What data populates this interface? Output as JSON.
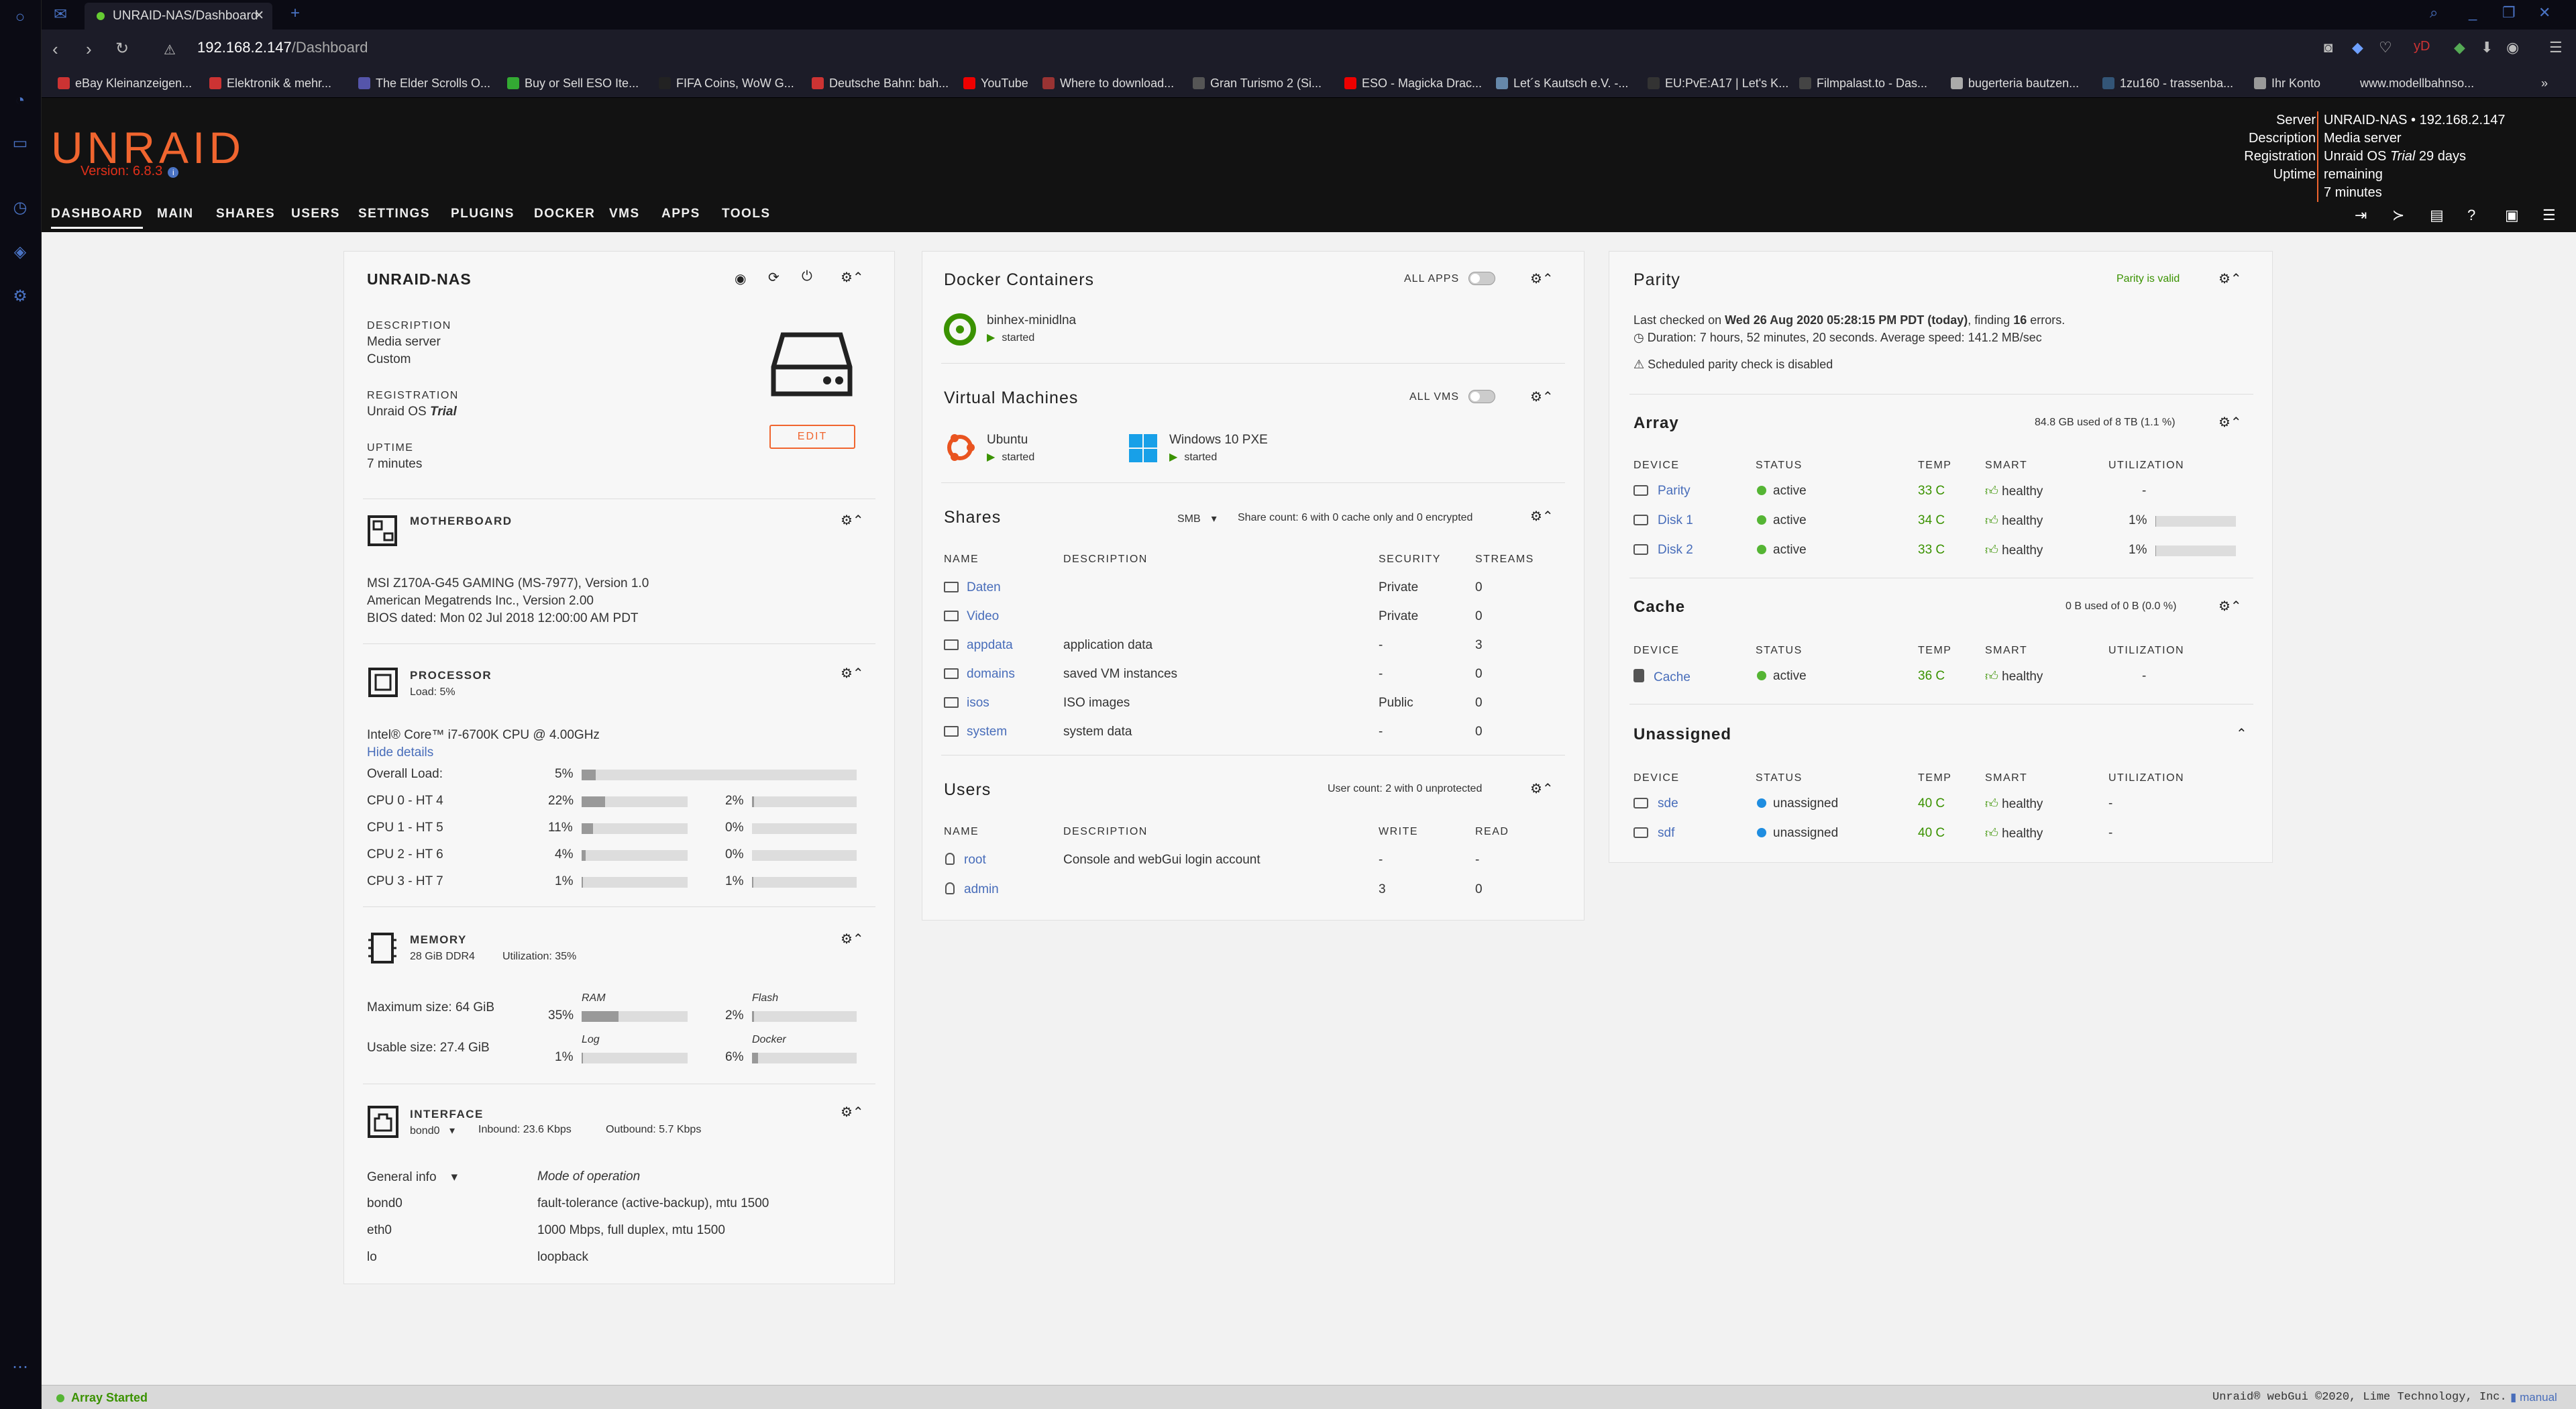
{
  "browser": {
    "tab_title": "UNRAID-NAS/Dashboard",
    "url_host": "192.168.2.147",
    "url_path": "/Dashboard",
    "bookmarks": [
      "eBay Kleinanzeigen...",
      "Elektronik & mehr...",
      "The Elder Scrolls O...",
      "Buy or Sell ESO Ite...",
      "FIFA Coins, WoW G...",
      "Deutsche Bahn: bah...",
      "YouTube",
      "Where to download...",
      "Gran Turismo 2 (Si...",
      "ESO - Magicka Drac...",
      "Let´s Kautsch e.V. -...",
      "EU:PvE:A17 | Let's K...",
      "Filmpalast.to - Das...",
      "bugerteria bautzen...",
      "1zu160 - trassenba...",
      "Ihr Konto",
      "www.modellbahnso..."
    ]
  },
  "header": {
    "logo": "UNRAID",
    "version": "Version: 6.8.3",
    "server_labels": [
      "Server",
      "Description",
      "Registration",
      "Uptime"
    ],
    "server": "UNRAID-NAS • 192.168.2.147",
    "description": "Media server",
    "registration_pre": "Unraid OS ",
    "registration_trial": "Trial",
    "registration_post": " 29 days remaining",
    "uptime": "7 minutes",
    "menu": [
      "DASHBOARD",
      "MAIN",
      "SHARES",
      "USERS",
      "SETTINGS",
      "PLUGINS",
      "DOCKER",
      "VMS",
      "APPS",
      "TOOLS"
    ]
  },
  "server_panel": {
    "name": "UNRAID-NAS",
    "desc_label": "DESCRIPTION",
    "desc1": "Media server",
    "desc2": "Custom",
    "reg_label": "REGISTRATION",
    "reg_pre": "Unraid OS ",
    "reg_trial": "Trial",
    "uptime_label": "UPTIME",
    "uptime": "7 minutes",
    "edit": "EDIT"
  },
  "motherboard": {
    "title": "MOTHERBOARD",
    "lines": [
      "MSI Z170A-G45 GAMING (MS-7977), Version 1.0",
      "American Megatrends Inc., Version 2.00",
      "BIOS dated: Mon 02 Jul 2018 12:00:00 AM PDT"
    ]
  },
  "processor": {
    "title": "PROCESSOR",
    "load": "Load: 5%",
    "model": "Intel® Core™ i7-6700K CPU @ 4.00GHz",
    "hide": "Hide details",
    "overall_label": "Overall Load:",
    "overall": "5%",
    "overall_pct": 5,
    "cpus": [
      {
        "label": "CPU 0 - HT 4",
        "a": "22%",
        "a_pct": 22,
        "b": "2%",
        "b_pct": 2
      },
      {
        "label": "CPU 1 - HT 5",
        "a": "11%",
        "a_pct": 11,
        "b": "0%",
        "b_pct": 0
      },
      {
        "label": "CPU 2 - HT 6",
        "a": "4%",
        "a_pct": 4,
        "b": "0%",
        "b_pct": 0
      },
      {
        "label": "CPU 3 - HT 7",
        "a": "1%",
        "a_pct": 1,
        "b": "1%",
        "b_pct": 1
      }
    ]
  },
  "memory": {
    "title": "MEMORY",
    "sub": "28 GiB DDR4",
    "util": "Utilization: 35%",
    "max": "Maximum size: 64 GiB",
    "usable": "Usable size: 27.4 GiB",
    "ram_label": "RAM",
    "ram": "35%",
    "ram_pct": 35,
    "flash_label": "Flash",
    "flash": "2%",
    "flash_pct": 2,
    "log_label": "Log",
    "log": "1%",
    "log_pct": 1,
    "docker_label": "Docker",
    "docker": "6%",
    "docker_pct": 6
  },
  "interface": {
    "title": "INTERFACE",
    "iface": "bond0",
    "inbound": "Inbound: 23.6 Kbps",
    "outbound": "Outbound: 5.7 Kbps",
    "general": "General info",
    "mode": "Mode of operation",
    "rows": [
      [
        "bond0",
        "fault-tolerance (active-backup), mtu 1500"
      ],
      [
        "eth0",
        "1000 Mbps, full duplex, mtu 1500"
      ],
      [
        "lo",
        "loopback"
      ]
    ]
  },
  "docker": {
    "title": "Docker Containers",
    "all": "ALL APPS",
    "name": "binhex-minidlna",
    "state": "started"
  },
  "vms": {
    "title": "Virtual Machines",
    "all": "ALL VMS",
    "items": [
      {
        "name": "Ubuntu",
        "state": "started"
      },
      {
        "name": "Windows 10 PXE",
        "state": "started"
      }
    ]
  },
  "shares": {
    "title": "Shares",
    "proto": "SMB",
    "count": "Share count: 6 with 0 cache only and 0 encrypted",
    "headers": [
      "NAME",
      "DESCRIPTION",
      "SECURITY",
      "STREAMS"
    ],
    "rows": [
      [
        "Daten",
        "",
        "Private",
        "0"
      ],
      [
        "Video",
        "",
        "Private",
        "0"
      ],
      [
        "appdata",
        "application data",
        "-",
        "3"
      ],
      [
        "domains",
        "saved VM instances",
        "-",
        "0"
      ],
      [
        "isos",
        "ISO images",
        "Public",
        "0"
      ],
      [
        "system",
        "system data",
        "-",
        "0"
      ]
    ]
  },
  "users": {
    "title": "Users",
    "count": "User count: 2 with 0 unprotected",
    "headers": [
      "NAME",
      "DESCRIPTION",
      "WRITE",
      "READ"
    ],
    "rows": [
      [
        "root",
        "Console and webGui login account",
        "-",
        "-"
      ],
      [
        "admin",
        "",
        "3",
        "0"
      ]
    ]
  },
  "parity": {
    "title": "Parity",
    "status": "Parity is valid",
    "l1_pre": "Last checked on ",
    "l1_date": "Wed 26 Aug 2020 05:28:15 PM PDT (today)",
    "l1_mid": ", finding ",
    "l1_err": "16",
    "l1_post": " errors.",
    "l2": "Duration: 7 hours, 52 minutes, 20 seconds. Average speed: 141.2 MB/sec",
    "l3": "Scheduled parity check is disabled"
  },
  "array": {
    "title": "Array",
    "usage": "84.8 GB used of 8 TB (1.1 %)",
    "headers": [
      "DEVICE",
      "STATUS",
      "TEMP",
      "SMART",
      "UTILIZATION"
    ],
    "rows": [
      {
        "dev": "Parity",
        "status": "active",
        "temp": "33 C",
        "smart": "healthy",
        "util": "-",
        "pct": null
      },
      {
        "dev": "Disk 1",
        "status": "active",
        "temp": "34 C",
        "smart": "healthy",
        "util": "1%",
        "pct": 1
      },
      {
        "dev": "Disk 2",
        "status": "active",
        "temp": "33 C",
        "smart": "healthy",
        "util": "1%",
        "pct": 1
      }
    ]
  },
  "cache": {
    "title": "Cache",
    "usage": "0 B used of 0 B (0.0 %)",
    "row": {
      "dev": "Cache",
      "status": "active",
      "temp": "36 C",
      "smart": "healthy",
      "util": "-"
    }
  },
  "unassigned": {
    "title": "Unassigned",
    "rows": [
      {
        "dev": "sde",
        "status": "unassigned",
        "temp": "40 C",
        "smart": "healthy",
        "util": "-"
      },
      {
        "dev": "sdf",
        "status": "unassigned",
        "temp": "40 C",
        "smart": "healthy",
        "util": "-"
      }
    ]
  },
  "footer": {
    "status": "Array Started",
    "copyright": "Unraid® webGui ©2020, Lime Technology, Inc.",
    "manual": "manual"
  }
}
